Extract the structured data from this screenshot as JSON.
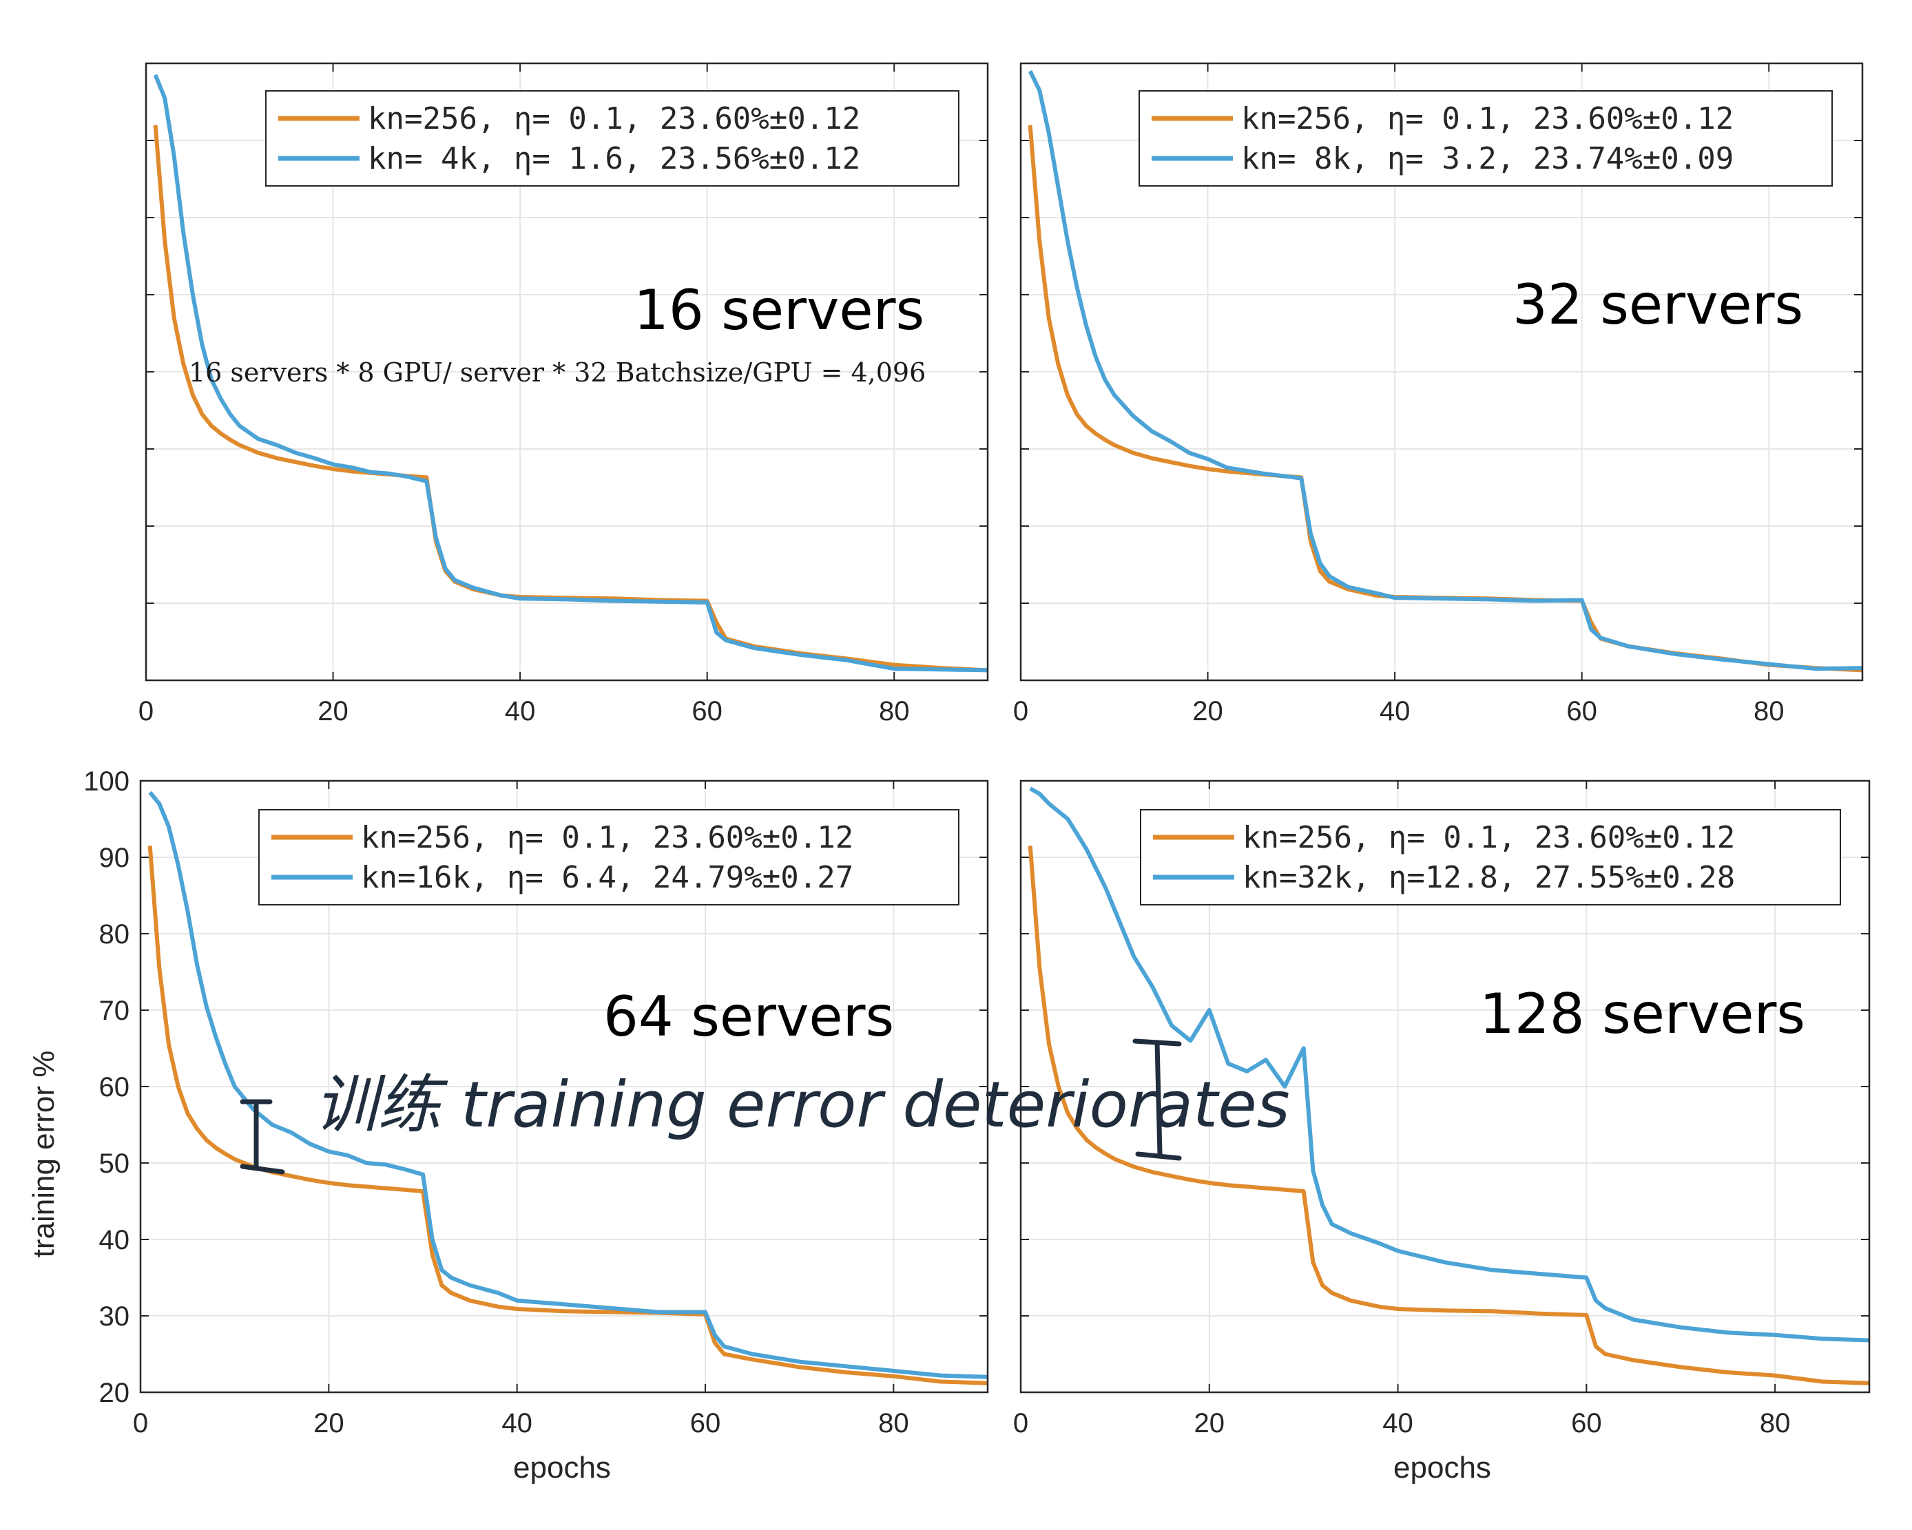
{
  "colors": {
    "orange": "#e08a2c",
    "blue": "#4ba3d6",
    "axis": "#262626",
    "grid": "#e6e6e6",
    "ink": "#1f2d3d"
  },
  "annotations": {
    "note": "16 servers * 8 GPU/ server * 32 Batchsize/GPU = 4,096",
    "handwritten": "训练 training error deteriorates"
  },
  "chart_data": [
    {
      "type": "line",
      "panel_label": "16 servers",
      "xlabel": "",
      "ylabel": "",
      "xlim": [
        0,
        90
      ],
      "ylim": [
        20,
        100
      ],
      "xticks": [
        0,
        20,
        40,
        60,
        80
      ],
      "yticks": [],
      "grid": true,
      "legend_position": "top-right",
      "x": [
        1,
        2,
        3,
        4,
        5,
        6,
        7,
        8,
        9,
        10,
        12,
        14,
        16,
        18,
        20,
        22,
        24,
        26,
        28,
        30,
        31,
        32,
        33,
        35,
        38,
        40,
        45,
        50,
        55,
        60,
        61,
        62,
        65,
        70,
        75,
        80,
        85,
        90
      ],
      "series": [
        {
          "name": "kn=256, η= 0.1, 23.60%±0.12",
          "color": "orange",
          "values": [
            92,
            77,
            67,
            61,
            57,
            54.5,
            53,
            52,
            51.2,
            50.5,
            49.5,
            48.8,
            48.3,
            47.8,
            47.4,
            47.1,
            46.9,
            46.7,
            46.5,
            46.3,
            38,
            34.2,
            32.8,
            31.8,
            31,
            30.8,
            30.7,
            30.6,
            30.4,
            30.3,
            27.5,
            25.4,
            24.4,
            23.5,
            22.8,
            22,
            21.6,
            21.3
          ]
        },
        {
          "name": "kn= 4k, η= 1.6, 23.56%±0.12",
          "color": "blue",
          "values": [
            98.5,
            95.5,
            88,
            78,
            70,
            63.5,
            59,
            56.5,
            54.5,
            53,
            51.3,
            50.5,
            49.5,
            48.8,
            48,
            47.6,
            47,
            46.8,
            46.4,
            45.8,
            38.5,
            34.5,
            33,
            32,
            31,
            30.6,
            30.5,
            30.3,
            30.2,
            30.1,
            26.2,
            25.2,
            24.2,
            23.3,
            22.6,
            21.5,
            21.4,
            21.3
          ]
        }
      ]
    },
    {
      "type": "line",
      "panel_label": "32 servers",
      "xlabel": "",
      "ylabel": "",
      "xlim": [
        0,
        90
      ],
      "ylim": [
        20,
        100
      ],
      "xticks": [
        0,
        20,
        40,
        60,
        80
      ],
      "yticks": [],
      "grid": true,
      "legend_position": "top-right",
      "x": [
        1,
        2,
        3,
        4,
        5,
        6,
        7,
        8,
        9,
        10,
        12,
        14,
        16,
        18,
        20,
        22,
        24,
        26,
        28,
        30,
        31,
        32,
        33,
        35,
        38,
        40,
        45,
        50,
        55,
        60,
        61,
        62,
        65,
        70,
        75,
        80,
        85,
        90
      ],
      "series": [
        {
          "name": "kn=256, η= 0.1, 23.60%±0.12",
          "color": "orange",
          "values": [
            92,
            77,
            67,
            61,
            57,
            54.5,
            53,
            52,
            51.2,
            50.5,
            49.5,
            48.8,
            48.3,
            47.8,
            47.4,
            47.1,
            46.9,
            46.7,
            46.5,
            46.3,
            38,
            34.2,
            32.8,
            31.8,
            31,
            30.8,
            30.7,
            30.6,
            30.4,
            30.3,
            27.5,
            25.4,
            24.4,
            23.5,
            22.8,
            22,
            21.6,
            21.3
          ]
        },
        {
          "name": "kn= 8k, η= 3.2, 23.74%±0.09",
          "color": "blue",
          "values": [
            99,
            96.5,
            91,
            84,
            77,
            71,
            66,
            62,
            59,
            57,
            54.3,
            52.3,
            51,
            49.5,
            48.7,
            47.6,
            47.2,
            46.8,
            46.5,
            46.2,
            39,
            35.2,
            33.5,
            32.1,
            31.3,
            30.7,
            30.6,
            30.5,
            30.3,
            30.4,
            26.6,
            25.5,
            24.4,
            23.4,
            22.7,
            22.1,
            21.5,
            21.6
          ]
        }
      ]
    },
    {
      "type": "line",
      "panel_label": "64 servers",
      "xlabel": "epochs",
      "ylabel": "training error %",
      "xlim": [
        0,
        90
      ],
      "ylim": [
        20,
        100
      ],
      "xticks": [
        0,
        20,
        40,
        60,
        80
      ],
      "yticks": [
        20,
        30,
        40,
        50,
        60,
        70,
        80,
        90,
        100
      ],
      "grid": true,
      "legend_position": "top-right",
      "x": [
        1,
        2,
        3,
        4,
        5,
        6,
        7,
        8,
        9,
        10,
        12,
        14,
        16,
        18,
        20,
        22,
        24,
        26,
        28,
        30,
        31,
        32,
        33,
        35,
        38,
        40,
        45,
        50,
        55,
        60,
        61,
        62,
        65,
        70,
        75,
        80,
        85,
        90
      ],
      "series": [
        {
          "name": "kn=256, η= 0.1, 23.60%±0.12",
          "color": "orange",
          "values": [
            91.5,
            75.5,
            65.5,
            60,
            56.5,
            54.5,
            53,
            52,
            51.2,
            50.5,
            49.5,
            48.8,
            48.3,
            47.8,
            47.4,
            47.1,
            46.9,
            46.7,
            46.5,
            46.3,
            38,
            34,
            33,
            32,
            31.2,
            30.9,
            30.6,
            30.5,
            30.4,
            30.2,
            26.5,
            25,
            24.3,
            23.3,
            22.6,
            22.1,
            21.4,
            21.2
          ]
        },
        {
          "name": "kn=16k, η= 6.4, 24.79%±0.27",
          "color": "blue",
          "values": [
            98.5,
            97,
            94,
            89,
            83,
            76,
            70.5,
            66.5,
            63,
            60,
            57,
            55,
            54,
            52.5,
            51.5,
            51,
            50,
            49.8,
            49.2,
            48.5,
            40,
            36,
            35,
            34,
            33,
            32,
            31.5,
            31,
            30.5,
            30.5,
            27.5,
            26,
            25,
            24,
            23.4,
            22.8,
            22.2,
            22
          ]
        }
      ]
    },
    {
      "type": "line",
      "panel_label": "128 servers",
      "xlabel": "epochs",
      "ylabel": "",
      "xlim": [
        0,
        90
      ],
      "ylim": [
        20,
        100
      ],
      "xticks": [
        0,
        20,
        40,
        60,
        80
      ],
      "yticks": [],
      "grid": true,
      "legend_position": "top-right",
      "x": [
        1,
        2,
        3,
        4,
        5,
        6,
        7,
        8,
        9,
        10,
        12,
        14,
        16,
        18,
        20,
        22,
        24,
        26,
        28,
        30,
        31,
        32,
        33,
        35,
        38,
        40,
        45,
        50,
        55,
        60,
        61,
        62,
        65,
        70,
        75,
        80,
        85,
        90
      ],
      "series": [
        {
          "name": "kn=256, η= 0.1, 23.60%±0.12",
          "color": "orange",
          "values": [
            91.5,
            75.5,
            65.5,
            60,
            56.5,
            54.5,
            53,
            52,
            51.2,
            50.5,
            49.5,
            48.8,
            48.3,
            47.8,
            47.4,
            47.1,
            46.9,
            46.7,
            46.5,
            46.3,
            37,
            34,
            33,
            32,
            31.2,
            30.9,
            30.7,
            30.6,
            30.3,
            30.1,
            26,
            25,
            24.2,
            23.3,
            22.6,
            22.2,
            21.4,
            21.2
          ]
        },
        {
          "name": "kn=32k, η=12.8, 27.55%±0.28",
          "color": "blue",
          "values": [
            99,
            98.3,
            97,
            96,
            95,
            93,
            91,
            88.5,
            86,
            83,
            77,
            73,
            68,
            66,
            70,
            63,
            62,
            63.5,
            60,
            65,
            49,
            44.5,
            42,
            40.8,
            39.5,
            38.5,
            37,
            36,
            35.5,
            35,
            32,
            31,
            29.5,
            28.5,
            27.8,
            27.5,
            27,
            26.8
          ]
        }
      ]
    }
  ]
}
